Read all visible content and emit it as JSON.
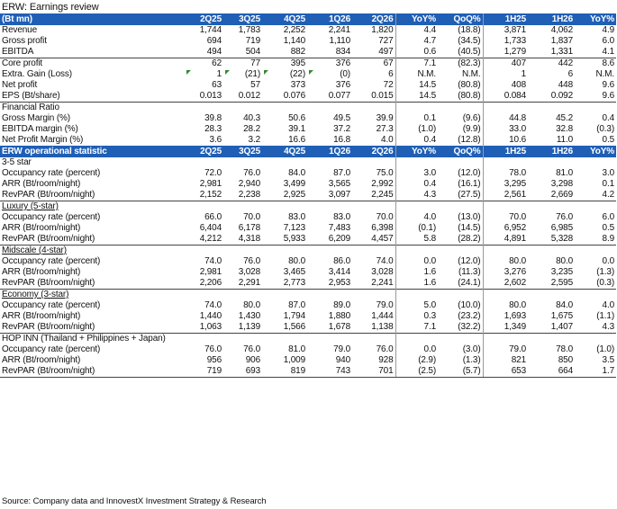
{
  "title": "ERW: Earnings review",
  "columns": [
    "2Q25",
    "3Q25",
    "4Q25",
    "1Q26",
    "2Q26",
    "YoY%",
    "QoQ%",
    "1H25",
    "1H26",
    "YoY%"
  ],
  "header1_label": "(Bt mn)",
  "earnings": [
    {
      "label": "Revenue",
      "values": [
        "1,744",
        "1,783",
        "2,252",
        "2,241",
        "1,820",
        "4.4",
        "(18.8)",
        "3,871",
        "4,062",
        "4.9"
      ]
    },
    {
      "label": "Gross profit",
      "values": [
        "694",
        "719",
        "1,140",
        "1,110",
        "727",
        "4.7",
        "(34.5)",
        "1,733",
        "1,837",
        "6.0"
      ]
    },
    {
      "label": "EBITDA",
      "values": [
        "494",
        "504",
        "882",
        "834",
        "497",
        "0.6",
        "(40.5)",
        "1,279",
        "1,331",
        "4.1"
      ]
    },
    {
      "label": "Core profit",
      "values": [
        "62",
        "77",
        "395",
        "376",
        "67",
        "7.1",
        "(82.3)",
        "407",
        "442",
        "8.6"
      ]
    },
    {
      "label": "Extra. Gain (Loss)",
      "values": [
        "1",
        "(21)",
        "(22)",
        "(0)",
        "6",
        "N.M.",
        "N.M.",
        "1",
        "6",
        "N.M."
      ]
    },
    {
      "label": "Net profit",
      "values": [
        "63",
        "57",
        "373",
        "376",
        "72",
        "14.5",
        "(80.8)",
        "408",
        "448",
        "9.6"
      ]
    },
    {
      "label": "EPS (Bt/share)",
      "values": [
        "0.013",
        "0.012",
        "0.076",
        "0.077",
        "0.015",
        "14.5",
        "(80.8)",
        "0.084",
        "0.092",
        "9.6"
      ]
    }
  ],
  "financial_ratio": {
    "title": "Financial Ratio",
    "rows": [
      {
        "label": "Gross Margin (%)",
        "values": [
          "39.8",
          "40.3",
          "50.6",
          "49.5",
          "39.9",
          "0.1",
          "(9.6)",
          "44.8",
          "45.2",
          "0.4"
        ]
      },
      {
        "label": "EBITDA margin (%)",
        "values": [
          "28.3",
          "28.2",
          "39.1",
          "37.2",
          "27.3",
          "(1.0)",
          "(9.9)",
          "33.0",
          "32.8",
          "(0.3)"
        ]
      },
      {
        "label": "Net Profit Margin (%)",
        "values": [
          "3.6",
          "3.2",
          "16.6",
          "16.8",
          "4.0",
          "0.4",
          "(12.8)",
          "10.6",
          "11.0",
          "0.5"
        ]
      }
    ]
  },
  "header2_label": "ERW operational statistic",
  "segments": [
    {
      "title": "3-5 star",
      "rows": [
        {
          "label": "Occupancy rate (percent)",
          "values": [
            "72.0",
            "76.0",
            "84.0",
            "87.0",
            "75.0",
            "3.0",
            "(12.0)",
            "78.0",
            "81.0",
            "3.0"
          ]
        },
        {
          "label": "ARR (Bt/room/night)",
          "values": [
            "2,981",
            "2,940",
            "3,499",
            "3,565",
            "2,992",
            "0.4",
            "(16.1)",
            "3,295",
            "3,298",
            "0.1"
          ]
        },
        {
          "label": "RevPAR (Bt/room/night)",
          "values": [
            "2,152",
            "2,238",
            "2,925",
            "3,097",
            "2,245",
            "4.3",
            "(27.5)",
            "2,561",
            "2,669",
            "4.2"
          ]
        }
      ]
    },
    {
      "title": "Luxury (5-star)",
      "rows": [
        {
          "label": "Occupancy rate (percent)",
          "values": [
            "66.0",
            "70.0",
            "83.0",
            "83.0",
            "70.0",
            "4.0",
            "(13.0)",
            "70.0",
            "76.0",
            "6.0"
          ]
        },
        {
          "label": "ARR (Bt/room/night)",
          "values": [
            "6,404",
            "6,178",
            "7,123",
            "7,483",
            "6,398",
            "(0.1)",
            "(14.5)",
            "6,952",
            "6,985",
            "0.5"
          ]
        },
        {
          "label": "RevPAR (Bt/room/night)",
          "values": [
            "4,212",
            "4,318",
            "5,933",
            "6,209",
            "4,457",
            "5.8",
            "(28.2)",
            "4,891",
            "5,328",
            "8.9"
          ]
        }
      ]
    },
    {
      "title": "Midscale (4-star)",
      "rows": [
        {
          "label": "Occupancy rate (percent)",
          "values": [
            "74.0",
            "76.0",
            "80.0",
            "86.0",
            "74.0",
            "0.0",
            "(12.0)",
            "80.0",
            "80.0",
            "0.0"
          ]
        },
        {
          "label": "ARR (Bt/room/night)",
          "values": [
            "2,981",
            "3,028",
            "3,465",
            "3,414",
            "3,028",
            "1.6",
            "(11.3)",
            "3,276",
            "3,235",
            "(1.3)"
          ]
        },
        {
          "label": "RevPAR (Bt/room/night)",
          "values": [
            "2,206",
            "2,291",
            "2,773",
            "2,953",
            "2,241",
            "1.6",
            "(24.1)",
            "2,602",
            "2,595",
            "(0.3)"
          ]
        }
      ]
    },
    {
      "title": "Economy (3-star)",
      "rows": [
        {
          "label": "Occupancy rate (percent)",
          "values": [
            "74.0",
            "80.0",
            "87.0",
            "89.0",
            "79.0",
            "5.0",
            "(10.0)",
            "80.0",
            "84.0",
            "4.0"
          ]
        },
        {
          "label": "ARR (Bt/room/night)",
          "values": [
            "1,440",
            "1,430",
            "1,794",
            "1,880",
            "1,444",
            "0.3",
            "(23.2)",
            "1,693",
            "1,675",
            "(1.1)"
          ]
        },
        {
          "label": "RevPAR (Bt/room/night)",
          "values": [
            "1,063",
            "1,139",
            "1,566",
            "1,678",
            "1,138",
            "7.1",
            "(32.2)",
            "1,349",
            "1,407",
            "4.3"
          ]
        }
      ]
    },
    {
      "title": "HOP INN (Thailand + Philippines + Japan)",
      "rows": [
        {
          "label": "Occupancy rate (percent)",
          "values": [
            "76.0",
            "76.0",
            "81.0",
            "79.0",
            "76.0",
            "0.0",
            "(3.0)",
            "79.0",
            "78.0",
            "(1.0)"
          ]
        },
        {
          "label": "ARR (Bt/room/night)",
          "values": [
            "956",
            "906",
            "1,009",
            "940",
            "928",
            "(2.9)",
            "(1.3)",
            "821",
            "850",
            "3.5"
          ]
        },
        {
          "label": "RevPAR (Bt/room/night)",
          "values": [
            "719",
            "693",
            "819",
            "743",
            "701",
            "(2.5)",
            "(5.7)",
            "653",
            "664",
            "1.7"
          ]
        }
      ]
    }
  ],
  "source": "Source: Company data and InnovestX Investment Strategy & Research"
}
